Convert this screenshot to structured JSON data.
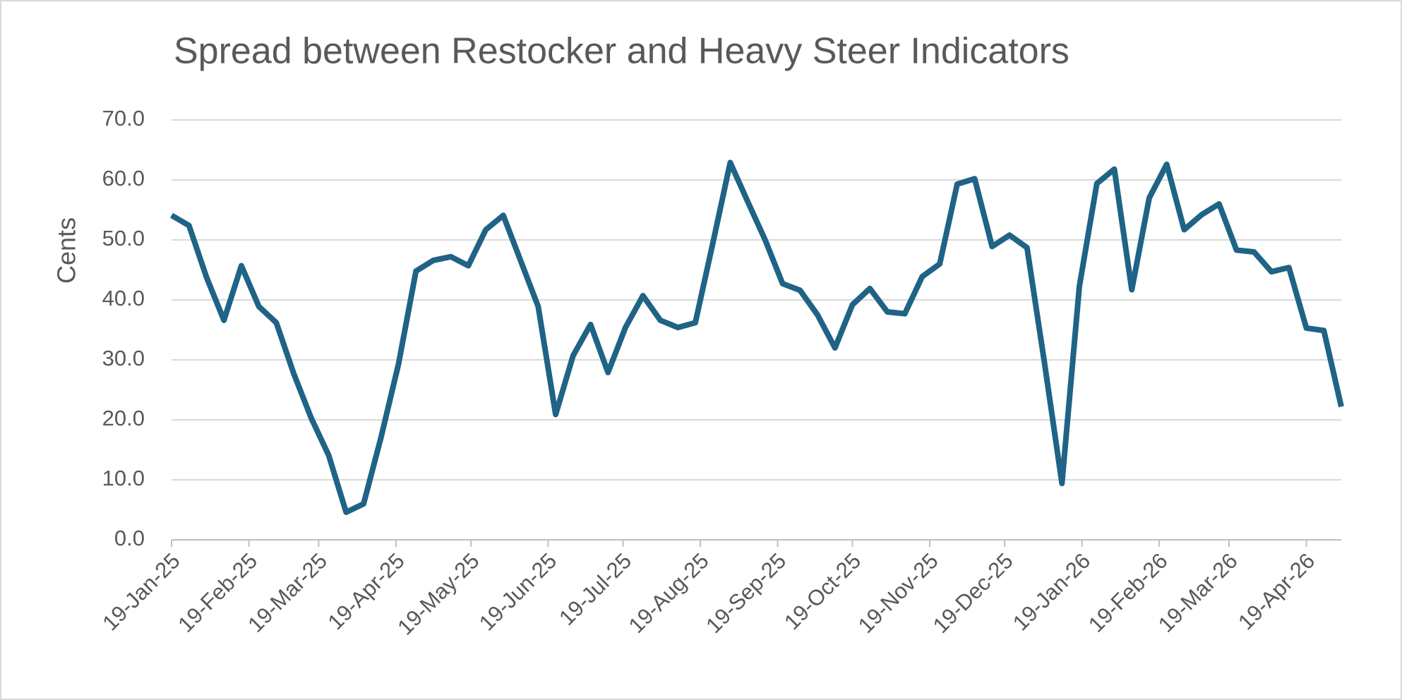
{
  "chart_data": {
    "type": "line",
    "title": "Spread between Restocker and Heavy Steer Indicators",
    "y_label": "Cents",
    "x": [
      "2025-01-19",
      "2025-01-26",
      "2025-02-02",
      "2025-02-09",
      "2025-02-16",
      "2025-02-23",
      "2025-03-02",
      "2025-03-09",
      "2025-03-16",
      "2025-03-23",
      "2025-03-30",
      "2025-04-06",
      "2025-04-13",
      "2025-04-20",
      "2025-04-27",
      "2025-05-04",
      "2025-05-11",
      "2025-05-18",
      "2025-05-25",
      "2025-06-01",
      "2025-06-08",
      "2025-06-15",
      "2025-06-22",
      "2025-06-29",
      "2025-07-06",
      "2025-07-13",
      "2025-07-20",
      "2025-07-27",
      "2025-08-03",
      "2025-08-10",
      "2025-08-17",
      "2025-08-24",
      "2025-08-31",
      "2025-09-07",
      "2025-09-14",
      "2025-09-21",
      "2025-09-28",
      "2025-10-05",
      "2025-10-12",
      "2025-10-19",
      "2025-10-26",
      "2025-11-02",
      "2025-11-09",
      "2025-11-16",
      "2025-11-23",
      "2025-11-30",
      "2025-12-07",
      "2025-12-14",
      "2025-12-21",
      "2025-12-28",
      "2026-01-04",
      "2026-01-11",
      "2026-01-18",
      "2026-01-25",
      "2026-02-01",
      "2026-02-08",
      "2026-02-15",
      "2026-02-22",
      "2026-03-01",
      "2026-03-08",
      "2026-03-15",
      "2026-03-22",
      "2026-03-29",
      "2026-04-05",
      "2026-04-12",
      "2026-04-19",
      "2026-04-26",
      "2026-05-03"
    ],
    "series": [
      {
        "name": "Spread",
        "color": "#1f6386",
        "values": [
          54.1,
          52.4,
          43.8,
          36.6,
          45.7,
          38.9,
          36.2,
          27.7,
          20.3,
          14.1,
          4.6,
          6.0,
          17.1,
          29.3,
          44.8,
          46.6,
          47.2,
          45.7,
          51.7,
          54.1,
          46.5,
          38.9,
          20.9,
          30.7,
          35.9,
          27.9,
          35.4,
          40.7,
          36.6,
          35.4,
          36.2,
          49.4,
          62.9,
          56.4,
          50.0,
          42.7,
          41.6,
          37.5,
          32.0,
          39.2,
          41.9,
          38.0,
          37.7,
          43.9,
          46.0,
          59.3,
          60.2,
          48.9,
          50.8,
          48.7,
          29.5,
          9.4,
          42.3,
          59.4,
          61.8,
          41.7,
          57.0,
          62.6,
          51.7,
          54.2,
          56.0,
          48.3,
          48.0,
          44.7,
          45.4,
          35.3,
          34.9,
          22.2
        ]
      }
    ],
    "xlim": [
      "2025-01-19",
      "2026-05-03"
    ],
    "xticks": [
      {
        "value": "2025-01-19",
        "label": "19-Jan-25"
      },
      {
        "value": "2025-02-19",
        "label": "19-Feb-25"
      },
      {
        "value": "2025-03-19",
        "label": "19-Mar-25"
      },
      {
        "value": "2025-04-19",
        "label": "19-Apr-25"
      },
      {
        "value": "2025-05-19",
        "label": "19-May-25"
      },
      {
        "value": "2025-06-19",
        "label": "19-Jun-25"
      },
      {
        "value": "2025-07-19",
        "label": "19-Jul-25"
      },
      {
        "value": "2025-08-19",
        "label": "19-Aug-25"
      },
      {
        "value": "2025-09-19",
        "label": "19-Sep-25"
      },
      {
        "value": "2025-10-19",
        "label": "19-Oct-25"
      },
      {
        "value": "2025-11-19",
        "label": "19-Nov-25"
      },
      {
        "value": "2025-12-19",
        "label": "19-Dec-25"
      },
      {
        "value": "2026-01-19",
        "label": "19-Jan-26"
      },
      {
        "value": "2026-02-19",
        "label": "19-Feb-26"
      },
      {
        "value": "2026-03-19",
        "label": "19-Mar-26"
      },
      {
        "value": "2026-04-19",
        "label": "19-Apr-26"
      }
    ],
    "ylim": [
      0,
      70
    ],
    "yticks": [
      {
        "value": 0,
        "label": "0.0"
      },
      {
        "value": 10,
        "label": "10.0"
      },
      {
        "value": 20,
        "label": "20.0"
      },
      {
        "value": 30,
        "label": "30.0"
      },
      {
        "value": 40,
        "label": "40.0"
      },
      {
        "value": 50,
        "label": "50.0"
      },
      {
        "value": 60,
        "label": "60.0"
      },
      {
        "value": 70,
        "label": "70.0"
      }
    ],
    "grid": true
  }
}
